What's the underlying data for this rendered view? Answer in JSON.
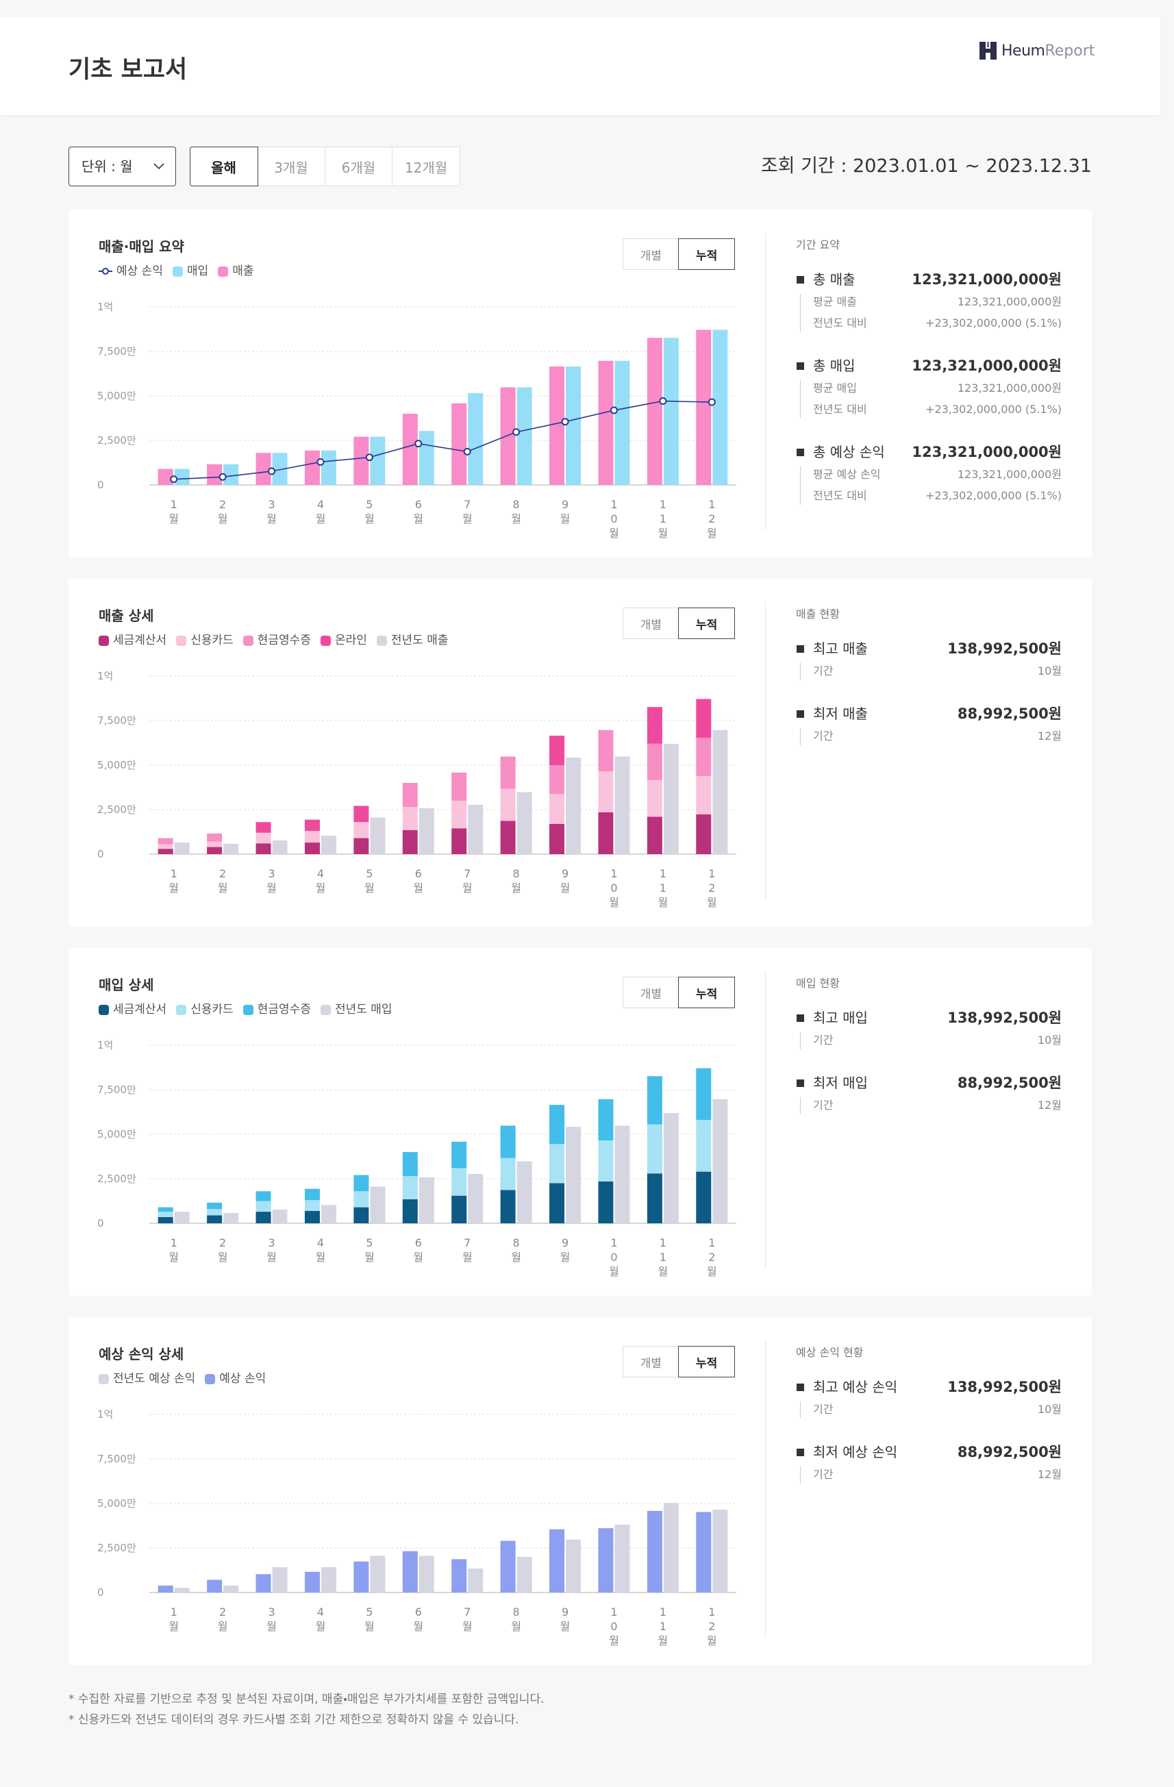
{
  "header": {
    "title": "기초 보고서",
    "logo_name": "Heum",
    "logo_suffix": "Report"
  },
  "controls": {
    "unit": "단위 : 월",
    "periods": [
      "올해",
      "3개월",
      "6개월",
      "12개월"
    ],
    "query_period": "조회 기간 : 2023.01.01 ~ 2023.12.31"
  },
  "chart_data": [
    {
      "type": "bar",
      "title": "매출·매입 요약",
      "toggle": [
        "개별",
        "누적"
      ],
      "reverse_bars": true,
      "categories": [
        "1월",
        "2월",
        "3월",
        "4월",
        "5월",
        "6월",
        "7월",
        "8월",
        "9월",
        "10월",
        "11월",
        "12월"
      ],
      "ylim": [
        0,
        10000
      ],
      "yticks": [
        0,
        {
          "value": 2500,
          "label": "2,500만"
        },
        {
          "value": 5000,
          "label": "5,000만"
        },
        {
          "value": 7500,
          "label": "7,500만"
        },
        {
          "value": 10000,
          "label": "1억"
        }
      ],
      "grid": true,
      "series": [
        {
          "name": "예상 손익",
          "type": "line",
          "color": "#2a3a8f",
          "values": [
            320,
            450,
            770,
            1290,
            1550,
            2320,
            1870,
            2970,
            3550,
            4190,
            4710,
            4650
          ]
        },
        {
          "name": "매입",
          "color": "#96def7",
          "values": [
            900,
            1160,
            1800,
            1935,
            2710,
            3030,
            5160,
            5480,
            6650,
            6970,
            8260,
            8710
          ]
        },
        {
          "name": "매출",
          "color": "#f98bc8",
          "values": [
            900,
            1160,
            1800,
            1935,
            2710,
            4000,
            4580,
            5480,
            6650,
            6970,
            8260,
            8710
          ]
        }
      ]
    },
    {
      "type": "bar",
      "title": "매출 상세",
      "toggle": [
        "개별",
        "누적"
      ],
      "categories": [
        "1월",
        "2월",
        "3월",
        "4월",
        "5월",
        "6월",
        "7월",
        "8월",
        "9월",
        "10월",
        "11월",
        "12월"
      ],
      "ylim": [
        0,
        10000
      ],
      "yticks": [
        0,
        {
          "value": 2500,
          "label": "2,500만"
        },
        {
          "value": 5000,
          "label": "5,000만"
        },
        {
          "value": 7500,
          "label": "7,500만"
        },
        {
          "value": 10000,
          "label": "1억"
        }
      ],
      "grid": true,
      "series": [
        {
          "name": "세금계산서",
          "stacked": true,
          "color": "#b8317a",
          "values": [
            300,
            400,
            600,
            650,
            900,
            1350,
            1450,
            1870,
            1700,
            2350,
            2100,
            2230
          ]
        },
        {
          "name": "신용카드",
          "stacked": true,
          "color": "#f9c3dc",
          "values": [
            250,
            300,
            600,
            650,
            900,
            1300,
            1550,
            1800,
            1680,
            2300,
            2050,
            2150
          ]
        },
        {
          "name": "현금영수증",
          "stacked": true,
          "color": "#f78fc4",
          "values": [
            350,
            460,
            0,
            0,
            0,
            1350,
            1580,
            1810,
            1610,
            2320,
            2050,
            2150
          ]
        },
        {
          "name": "온라인",
          "stacked": true,
          "color": "#ee4a9d",
          "values": [
            0,
            0,
            600,
            635,
            910,
            0,
            0,
            0,
            1660,
            0,
            2060,
            2180
          ]
        },
        {
          "name": "전년도 매출",
          "color": "#d5d6e2",
          "values": [
            650,
            580,
            770,
            1030,
            2060,
            2580,
            2770,
            3480,
            5420,
            5480,
            6190,
            6970
          ]
        }
      ]
    },
    {
      "type": "bar",
      "title": "매입 상세",
      "toggle": [
        "개별",
        "누적"
      ],
      "categories": [
        "1월",
        "2월",
        "3월",
        "4월",
        "5월",
        "6월",
        "7월",
        "8월",
        "9월",
        "10월",
        "11월",
        "12월"
      ],
      "ylim": [
        0,
        10000
      ],
      "yticks": [
        0,
        {
          "value": 2500,
          "label": "2,500만"
        },
        {
          "value": 5000,
          "label": "5,000만"
        },
        {
          "value": 7500,
          "label": "7,500만"
        },
        {
          "value": 10000,
          "label": "1억"
        }
      ],
      "grid": true,
      "series": [
        {
          "name": "세금계산서",
          "stacked": true,
          "color": "#0d5a85",
          "values": [
            350,
            450,
            650,
            700,
            900,
            1350,
            1550,
            1870,
            2250,
            2350,
            2800,
            2900
          ]
        },
        {
          "name": "신용카드",
          "stacked": true,
          "color": "#a8e2f5",
          "values": [
            300,
            350,
            600,
            600,
            900,
            1300,
            1550,
            1800,
            2200,
            2300,
            2750,
            2900
          ]
        },
        {
          "name": "현금영수증",
          "stacked": true,
          "color": "#43bdea",
          "values": [
            250,
            360,
            550,
            635,
            910,
            1350,
            1480,
            1810,
            2200,
            2320,
            2710,
            2910
          ]
        },
        {
          "name": "전년도 매입",
          "color": "#d5d6e2",
          "values": [
            650,
            580,
            770,
            1030,
            2060,
            2580,
            2770,
            3480,
            5420,
            5480,
            6190,
            6970
          ]
        }
      ]
    },
    {
      "type": "bar",
      "title": "예상 손익 상세",
      "toggle": [
        "개별",
        "누적"
      ],
      "reverse_bars": true,
      "categories": [
        "1월",
        "2월",
        "3월",
        "4월",
        "5월",
        "6월",
        "7월",
        "8월",
        "9월",
        "10월",
        "11월",
        "12월"
      ],
      "ylim": [
        0,
        10000
      ],
      "yticks": [
        0,
        {
          "value": 2500,
          "label": "2,500만"
        },
        {
          "value": 5000,
          "label": "5,000만"
        },
        {
          "value": 7500,
          "label": "7,500만"
        },
        {
          "value": 10000,
          "label": "1억"
        }
      ],
      "grid": true,
      "series": [
        {
          "name": "전년도 예상 손익",
          "color": "#d5d6e2",
          "values": [
            260,
            390,
            1420,
            1420,
            2060,
            2060,
            1350,
            2000,
            2970,
            3810,
            5030,
            4650
          ]
        },
        {
          "name": "예상 손익",
          "color": "#8c9ff0",
          "values": [
            390,
            710,
            1030,
            1160,
            1740,
            2320,
            1870,
            2900,
            3550,
            3610,
            4580,
            4520
          ]
        }
      ]
    }
  ],
  "panels": [
    {
      "title": "기간 요약",
      "items": [
        {
          "name": "총 매출",
          "value": "123,321,000,000원",
          "rows": [
            {
              "label": "평균 매출",
              "value": "123,321,000,000원"
            },
            {
              "label": "전년도 대비",
              "value": "+23,302,000,000 (5.1%)"
            }
          ]
        },
        {
          "name": "총 매입",
          "value": "123,321,000,000원",
          "rows": [
            {
              "label": "평균 매입",
              "value": "123,321,000,000원"
            },
            {
              "label": "전년도 대비",
              "value": "+23,302,000,000 (5.1%)"
            }
          ]
        },
        {
          "name": "총 예상 손익",
          "value": "123,321,000,000원",
          "rows": [
            {
              "label": "평균 예상 손익",
              "value": "123,321,000,000원"
            },
            {
              "label": "전년도 대비",
              "value": "+23,302,000,000 (5.1%)"
            }
          ]
        }
      ]
    },
    {
      "title": "매출 현황",
      "items": [
        {
          "name": "최고 매출",
          "value": "138,992,500원",
          "rows": [
            {
              "label": "기간",
              "value": "10월"
            }
          ]
        },
        {
          "name": "최저 매출",
          "value": "88,992,500원",
          "rows": [
            {
              "label": "기간",
              "value": "12월"
            }
          ]
        }
      ]
    },
    {
      "title": "매입 현황",
      "items": [
        {
          "name": "최고 매입",
          "value": "138,992,500원",
          "rows": [
            {
              "label": "기간",
              "value": "10월"
            }
          ]
        },
        {
          "name": "최저 매입",
          "value": "88,992,500원",
          "rows": [
            {
              "label": "기간",
              "value": "12월"
            }
          ]
        }
      ]
    },
    {
      "title": "예상 손익 현황",
      "items": [
        {
          "name": "최고 예상 손익",
          "value": "138,992,500원",
          "rows": [
            {
              "label": "기간",
              "value": "10월"
            }
          ]
        },
        {
          "name": "최저 예상 손익",
          "value": "88,992,500원",
          "rows": [
            {
              "label": "기간",
              "value": "12월"
            }
          ]
        }
      ]
    }
  ],
  "footnotes": [
    "* 수집한 자료를 기반으로 추정 및 분석된 자료이며, 매출・매입은 부가가치세를 포함한 금액입니다.",
    "* 신용카드와 전년도 데이터의 경우 카드사별 조회 기간 제한으로 정확하지 않을 수 있습니다."
  ]
}
